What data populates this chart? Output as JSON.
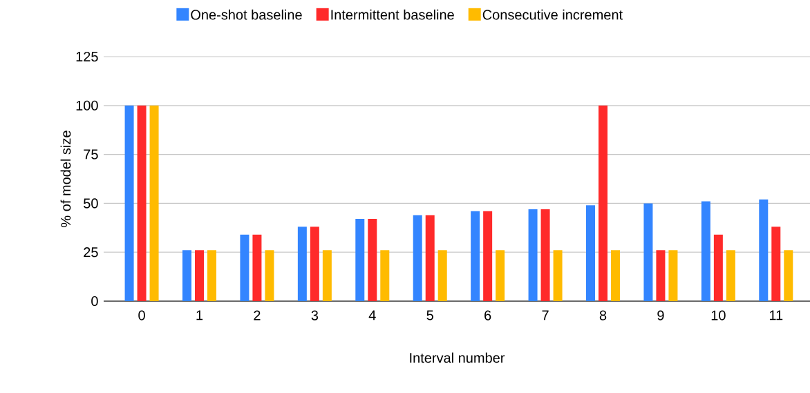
{
  "chart_data": {
    "type": "bar",
    "xlabel": "Interval number",
    "ylabel": "% of model size",
    "categories": [
      "0",
      "1",
      "2",
      "3",
      "4",
      "5",
      "6",
      "7",
      "8",
      "9",
      "10",
      "11"
    ],
    "series": [
      {
        "name": "One-shot baseline",
        "color": "#3385ff",
        "values": [
          100,
          26,
          34,
          38,
          42,
          44,
          46,
          47,
          49,
          50,
          51,
          52
        ]
      },
      {
        "name": "Intermittent baseline",
        "color": "#ff2a2a",
        "values": [
          100,
          26,
          34,
          38,
          42,
          44,
          46,
          47,
          100,
          26,
          34,
          38
        ]
      },
      {
        "name": "Consecutive increment",
        "color": "#ffbb00",
        "values": [
          100,
          26,
          26,
          26,
          26,
          26,
          26,
          26,
          26,
          26,
          26,
          26
        ]
      }
    ],
    "ylim": [
      0,
      125
    ],
    "yticks": [
      0,
      25,
      50,
      75,
      100,
      125
    ],
    "grid": "y",
    "legend": "top"
  }
}
